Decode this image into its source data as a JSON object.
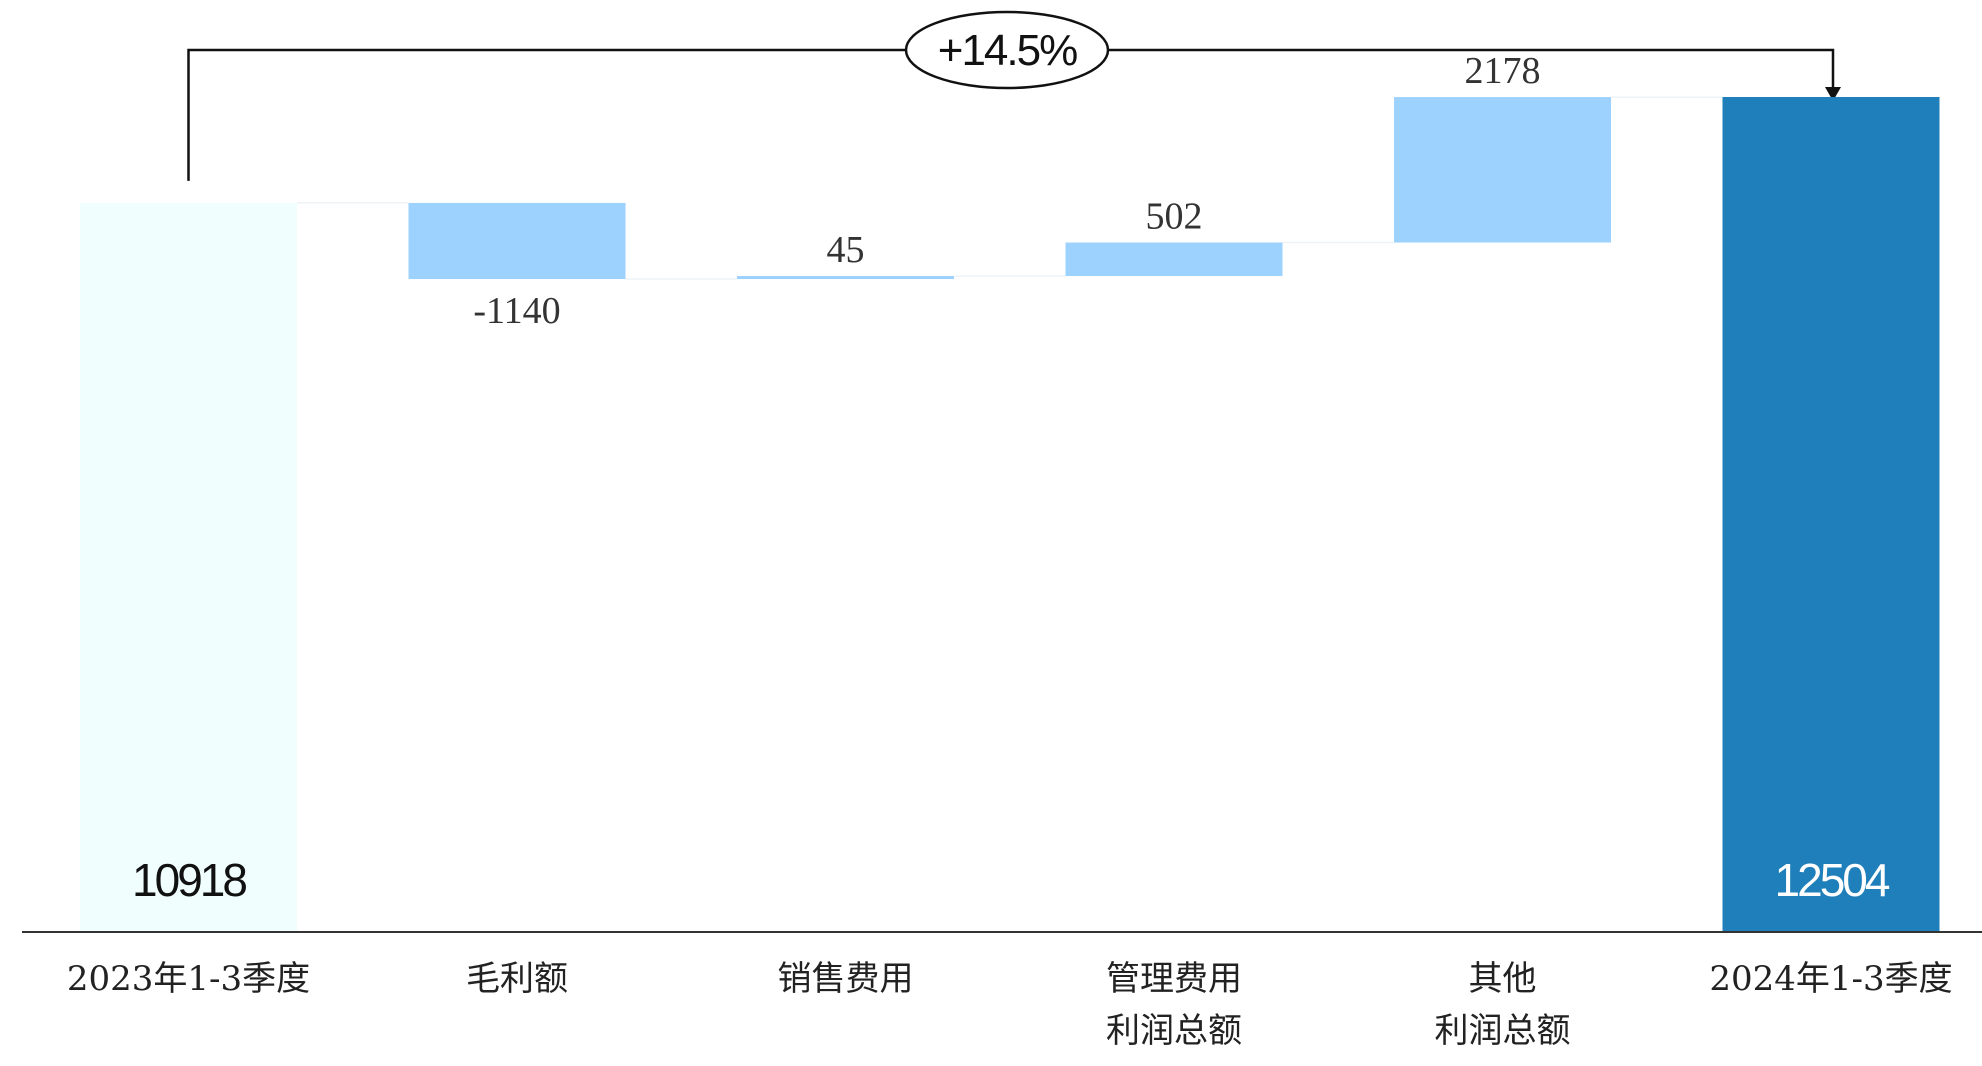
{
  "chart_data": {
    "type": "bar",
    "subtype": "waterfall",
    "categories": [
      "2023年1-3季度",
      "毛利额",
      "销售费用",
      "管理费用",
      "其他",
      "2024年1-3季度"
    ],
    "values": [
      10918,
      -1140,
      45,
      502,
      2178,
      12504
    ],
    "value_labels": [
      "10918",
      "-1140",
      "45",
      "502",
      "2178",
      "12504"
    ],
    "bar_kinds": [
      "start",
      "delta",
      "delta",
      "delta",
      "delta",
      "end"
    ],
    "sub_labels": [
      "",
      "",
      "",
      "利润总额",
      "利润总额",
      ""
    ],
    "growth_annotation": "+14.5%",
    "ylim": [
      0,
      12504
    ],
    "grid": false,
    "colors": {
      "start": "#f0fffe",
      "delta": "#9dd1fe",
      "end": "#1f7fba",
      "start_text": "#111111",
      "end_text": "#ffffff",
      "axis": "#333333",
      "bracket": "#111111"
    }
  }
}
